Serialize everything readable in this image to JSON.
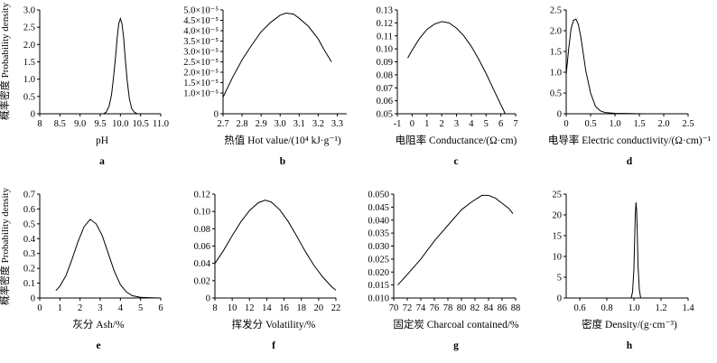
{
  "y_axis_label": "概率密度 Probability density",
  "chart_data": [
    {
      "type": "line",
      "panel": "a",
      "xlabel": "pH",
      "xlim": [
        8,
        11
      ],
      "ylim": [
        0,
        3.0
      ],
      "xticks": [
        "8",
        "8.5",
        "9.0",
        "9.5",
        "10.0",
        "10.5",
        "11.0"
      ],
      "yticks": [
        "0",
        "0.5",
        "1.0",
        "1.5",
        "2.0",
        "2.5",
        "3.0"
      ],
      "x": [
        9.58,
        9.65,
        9.72,
        9.78,
        9.83,
        9.88,
        9.92,
        9.96,
        10.0,
        10.04,
        10.08,
        10.12,
        10.17,
        10.22,
        10.28,
        10.35,
        10.42
      ],
      "y": [
        0.0,
        0.05,
        0.22,
        0.55,
        1.05,
        1.65,
        2.2,
        2.6,
        2.75,
        2.6,
        2.2,
        1.6,
        0.95,
        0.45,
        0.15,
        0.04,
        0.0
      ]
    },
    {
      "type": "line",
      "panel": "b",
      "xlabel": "热值  Hot value/(10⁴ kJ·g⁻¹)",
      "xlim": [
        2.7,
        3.35
      ],
      "ylim": [
        0,
        5e-05
      ],
      "xticks": [
        "2.7",
        "2.8",
        "2.9",
        "3.0",
        "3.1",
        "3.2",
        "3.3"
      ],
      "yticks": [
        "0",
        "1.0×10⁻⁵",
        "1.5×10⁻⁵",
        "2.0×10⁻⁵",
        "2.5×10⁻⁵",
        "3.0×10⁻⁵",
        "3.5×10⁻⁵",
        "4.0×10⁻⁵",
        "4.5×10⁻⁵",
        "5.0×10⁻⁵"
      ],
      "ytick_values": [
        0,
        1e-05,
        1.5e-05,
        2e-05,
        2.5e-05,
        3e-05,
        3.5e-05,
        4e-05,
        4.5e-05,
        5e-05
      ],
      "x": [
        2.7,
        2.75,
        2.8,
        2.85,
        2.9,
        2.95,
        3.0,
        3.03,
        3.07,
        3.1,
        3.15,
        3.2,
        3.23,
        3.27
      ],
      "y": [
        8e-06,
        1.75e-05,
        2.6e-05,
        3.3e-05,
        3.95e-05,
        4.4e-05,
        4.75e-05,
        4.85e-05,
        4.8e-05,
        4.6e-05,
        4.2e-05,
        3.6e-05,
        3.1e-05,
        2.5e-05
      ]
    },
    {
      "type": "line",
      "panel": "c",
      "xlabel": "电阻率  Conductance/(Ω·cm)",
      "xlim": [
        -1,
        7
      ],
      "ylim": [
        0.05,
        0.13
      ],
      "xticks": [
        "-1",
        "0",
        "1",
        "2",
        "3",
        "4",
        "5",
        "6",
        "7"
      ],
      "yticks": [
        "0.05",
        "0.06",
        "0.07",
        "0.08",
        "0.09",
        "0.10",
        "0.11",
        "0.12",
        "0.13"
      ],
      "x": [
        -0.3,
        0.0,
        0.5,
        1.0,
        1.5,
        2.0,
        2.5,
        3.0,
        3.5,
        4.0,
        4.5,
        5.0,
        5.5,
        6.0,
        6.3
      ],
      "y": [
        0.093,
        0.099,
        0.108,
        0.115,
        0.119,
        0.121,
        0.12,
        0.116,
        0.11,
        0.102,
        0.092,
        0.081,
        0.069,
        0.057,
        0.05
      ]
    },
    {
      "type": "line",
      "panel": "d",
      "xlabel": "电导率  Electric conductivity/(Ω·cm)⁻¹",
      "xlim": [
        0,
        2.5
      ],
      "ylim": [
        0,
        2.5
      ],
      "xticks": [
        "0",
        "0.5",
        "1.0",
        "1.5",
        "2.0",
        "2.5"
      ],
      "yticks": [
        "0",
        "0.5",
        "1.0",
        "1.5",
        "2.0",
        "2.5"
      ],
      "x": [
        0.0,
        0.05,
        0.1,
        0.15,
        0.2,
        0.25,
        0.3,
        0.35,
        0.4,
        0.5,
        0.6,
        0.7,
        0.8,
        1.0,
        1.3,
        1.6,
        1.8
      ],
      "y": [
        0.95,
        1.55,
        2.05,
        2.25,
        2.28,
        2.15,
        1.85,
        1.45,
        1.05,
        0.5,
        0.18,
        0.07,
        0.03,
        0.01,
        0.005,
        0.0,
        0.0
      ]
    },
    {
      "type": "line",
      "panel": "e",
      "xlabel": "灰分  Ash/%",
      "xlim": [
        0,
        6
      ],
      "ylim": [
        0,
        0.7
      ],
      "xticks": [
        "0",
        "1",
        "2",
        "3",
        "4",
        "5",
        "6"
      ],
      "yticks": [
        "0",
        "0.1",
        "0.2",
        "0.3",
        "0.4",
        "0.5",
        "0.6",
        "0.7"
      ],
      "x": [
        0.8,
        1.0,
        1.3,
        1.6,
        1.9,
        2.2,
        2.5,
        2.8,
        3.1,
        3.4,
        3.7,
        4.0,
        4.3,
        4.6,
        5.0,
        5.5,
        6.0
      ],
      "y": [
        0.05,
        0.08,
        0.15,
        0.26,
        0.38,
        0.48,
        0.53,
        0.5,
        0.42,
        0.3,
        0.18,
        0.09,
        0.04,
        0.015,
        0.005,
        0.002,
        0.0
      ]
    },
    {
      "type": "line",
      "panel": "f",
      "xlabel": "挥发分  Volatility/%",
      "xlim": [
        8,
        22
      ],
      "ylim": [
        0,
        0.12
      ],
      "xticks": [
        "8",
        "10",
        "12",
        "14",
        "16",
        "18",
        "20",
        "22"
      ],
      "yticks": [
        "0",
        "0.02",
        "0.04",
        "0.06",
        "0.08",
        "0.10",
        "0.12"
      ],
      "x": [
        8.0,
        9.0,
        10.0,
        11.0,
        12.0,
        13.0,
        13.8,
        14.5,
        15.5,
        16.5,
        17.5,
        18.5,
        19.5,
        20.5,
        21.5,
        22.0
      ],
      "y": [
        0.04,
        0.055,
        0.072,
        0.088,
        0.101,
        0.11,
        0.113,
        0.111,
        0.102,
        0.088,
        0.071,
        0.053,
        0.037,
        0.024,
        0.013,
        0.009
      ]
    },
    {
      "type": "line",
      "panel": "g",
      "xlabel": "固定炭  Charcoal contained/%",
      "xlim": [
        70,
        88
      ],
      "ylim": [
        0.01,
        0.05
      ],
      "xticks": [
        "70",
        "72",
        "74",
        "76",
        "78",
        "80",
        "82",
        "84",
        "86",
        "88"
      ],
      "yticks": [
        "0.010",
        "0.015",
        "0.020",
        "0.025",
        "0.030",
        "0.035",
        "0.040",
        "0.045",
        "0.050"
      ],
      "x": [
        70.6,
        72,
        74,
        76,
        78,
        80,
        81.5,
        83,
        84,
        85,
        86,
        87,
        87.6
      ],
      "y": [
        0.015,
        0.019,
        0.025,
        0.032,
        0.038,
        0.044,
        0.047,
        0.0495,
        0.0495,
        0.0485,
        0.0465,
        0.0445,
        0.0425
      ]
    },
    {
      "type": "line",
      "panel": "h",
      "xlabel": "密度  Density/(g·cm⁻³)",
      "xlim": [
        0.5,
        1.4
      ],
      "ylim": [
        0,
        25
      ],
      "xticks": [
        "0.6",
        "0.8",
        "1.0",
        "1.2",
        "1.4"
      ],
      "ytick_values": [
        0,
        5,
        10,
        15,
        20,
        25
      ],
      "yticks": [
        "0",
        "5",
        "10",
        "15",
        "20",
        "25"
      ],
      "x": [
        0.98,
        0.99,
        1.0,
        1.005,
        1.01,
        1.015,
        1.02,
        1.025,
        1.03,
        1.04,
        1.05
      ],
      "y": [
        0.0,
        1.5,
        7.0,
        14.0,
        20.0,
        23.0,
        21.0,
        15.0,
        8.0,
        2.0,
        0.0
      ]
    }
  ]
}
